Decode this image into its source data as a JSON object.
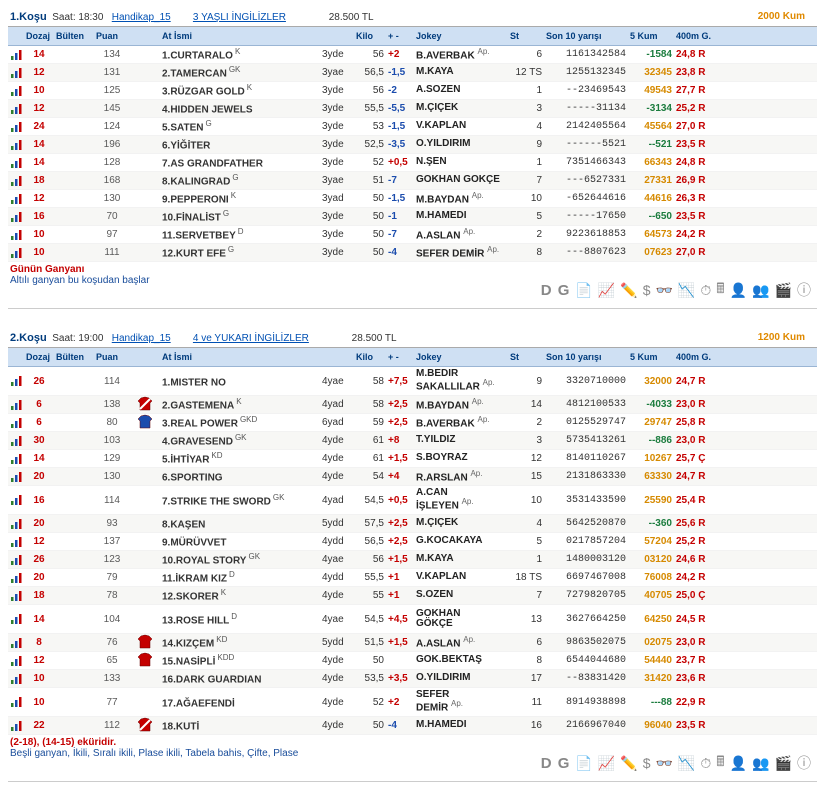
{
  "colors": {
    "dozaj": {
      "14": "#c40000",
      "12": "#c40000",
      "10": "#c40000",
      "24": "#c40000",
      "18": "#c40000",
      "16": "#c40000",
      "26": "#c40000",
      "6": "#c40000",
      "30": "#c40000",
      "20": "#c40000",
      "8": "#c40000"
    },
    "ts": "#888"
  },
  "header_cols": [
    "",
    "Dozaj",
    "Bülten",
    "Puan",
    "",
    "At İsmi",
    "",
    "Kilo",
    "+ -",
    "Jokey",
    "St",
    "Son 10 yarışı",
    "5 Kum",
    "400m G."
  ],
  "race1": {
    "label": "1.Koşu",
    "time": "Saat: 18:30",
    "handicap": "Handikap_15",
    "cat": "3 YAŞLI İNGİLİZLER",
    "prize": "28.500 TL",
    "track": "2000 Kum",
    "note1": "Günün Ganyanı",
    "note2": "Altılı ganyan bu koşudan başlar",
    "rows": [
      {
        "dozaj": "14",
        "dc": "#c40000",
        "bulten": "",
        "puan": "134",
        "silk": "",
        "isim": "1.CURTARALO",
        "ek": "K",
        "age": "3yde",
        "kilo": "56",
        "pm": "+2",
        "pmc": "#c40000",
        "jockey": "B.AVERBAK",
        "jsup": "Ap.",
        "st": "6",
        "son10": "1161342584",
        "kum5": "-1584",
        "kc": "#1b7c3e",
        "g400": "24,8 R",
        "gc": "#c40000"
      },
      {
        "dozaj": "12",
        "dc": "#c40000",
        "bulten": "",
        "puan": "131",
        "silk": "",
        "isim": "2.TAMERCAN",
        "ek": "GK",
        "age": "3yae",
        "kilo": "56,5",
        "pm": "-1,5",
        "pmc": "#1b4cad",
        "jockey": "M.KAYA",
        "jsup": "",
        "st": "12 TS",
        "son10": "1255132345",
        "kum5": "32345",
        "kc": "#d68a00",
        "g400": "23,8 R",
        "gc": "#c40000"
      },
      {
        "dozaj": "10",
        "dc": "#c40000",
        "bulten": "",
        "puan": "125",
        "silk": "",
        "isim": "3.RÜZGAR GOLD",
        "ek": "K",
        "age": "3yde",
        "kilo": "56",
        "pm": "-2",
        "pmc": "#1b4cad",
        "jockey": "A.SÖZEN",
        "jsup": "",
        "st": "1",
        "son10": "--23469543",
        "kum5": "49543",
        "kc": "#d68a00",
        "g400": "27,7 R",
        "gc": "#c40000"
      },
      {
        "dozaj": "12",
        "dc": "#c40000",
        "bulten": "",
        "puan": "145",
        "silk": "",
        "isim": "4.HIDDEN JEWELS",
        "ek": "",
        "age": "3yde",
        "kilo": "55,5",
        "pm": "-5,5",
        "pmc": "#1b4cad",
        "jockey": "M.ÇİÇEK",
        "jsup": "",
        "st": "3",
        "son10": "-----31134",
        "kum5": "-3134",
        "kc": "#1b7c3e",
        "g400": "25,2 R",
        "gc": "#c40000"
      },
      {
        "dozaj": "24",
        "dc": "#c40000",
        "bulten": "",
        "puan": "124",
        "silk": "",
        "isim": "5.SATEN",
        "ek": "G",
        "age": "3yde",
        "kilo": "53",
        "pm": "-1,5",
        "pmc": "#1b4cad",
        "jockey": "V.KAPLAN",
        "jsup": "",
        "st": "4",
        "son10": "2142405564",
        "kum5": "45564",
        "kc": "#d68a00",
        "g400": "27,0 R",
        "gc": "#c40000"
      },
      {
        "dozaj": "14",
        "dc": "#c40000",
        "bulten": "",
        "puan": "196",
        "silk": "",
        "isim": "6.YİĞİTER",
        "ek": "",
        "age": "3yde",
        "kilo": "52,5",
        "pm": "-3,5",
        "pmc": "#1b4cad",
        "jockey": "Ö.YILDIRIM",
        "jsup": "",
        "st": "9",
        "son10": "------5521",
        "kum5": "--521",
        "kc": "#1b7c3e",
        "g400": "23,5 R",
        "gc": "#c40000"
      },
      {
        "dozaj": "14",
        "dc": "#c40000",
        "bulten": "",
        "puan": "128",
        "silk": "",
        "isim": "7.AS GRANDFATHER",
        "ek": "",
        "age": "3yde",
        "kilo": "52",
        "pm": "+0,5",
        "pmc": "#c40000",
        "jockey": "N.ŞEN",
        "jsup": "",
        "st": "1",
        "son10": "7351466343",
        "kum5": "66343",
        "kc": "#d68a00",
        "g400": "24,8 R",
        "gc": "#c40000"
      },
      {
        "dozaj": "18",
        "dc": "#c40000",
        "bulten": "",
        "puan": "168",
        "silk": "",
        "isim": "8.KALINGRAD",
        "ek": "G",
        "age": "3yae",
        "kilo": "51",
        "pm": "-7",
        "pmc": "#1b4cad",
        "jockey": "GÖKHAN GÖKÇE",
        "jsup": "",
        "st": "7",
        "son10": "---6527331",
        "kum5": "27331",
        "kc": "#d68a00",
        "g400": "26,9 R",
        "gc": "#c40000"
      },
      {
        "dozaj": "12",
        "dc": "#c40000",
        "bulten": "",
        "puan": "130",
        "silk": "",
        "isim": "9.PEPPERONI",
        "ek": "K",
        "age": "3yad",
        "kilo": "50",
        "pm": "-1,5",
        "pmc": "#1b4cad",
        "jockey": "M.BAYDAN",
        "jsup": "Ap.",
        "st": "10",
        "son10": "-652644616",
        "kum5": "44616",
        "kc": "#d68a00",
        "g400": "26,3 R",
        "gc": "#c40000"
      },
      {
        "dozaj": "16",
        "dc": "#c40000",
        "bulten": "",
        "puan": "70",
        "silk": "",
        "isim": "10.FİNALİST",
        "ek": "G",
        "age": "3yde",
        "kilo": "50",
        "pm": "-1",
        "pmc": "#1b4cad",
        "jockey": "M.HAMEDI",
        "jsup": "",
        "st": "5",
        "son10": "-----17650",
        "kum5": "--650",
        "kc": "#1b7c3e",
        "g400": "23,5 R",
        "gc": "#c40000"
      },
      {
        "dozaj": "10",
        "dc": "#c40000",
        "bulten": "",
        "puan": "97",
        "silk": "",
        "isim": "11.SERVETBEY",
        "ek": "D",
        "age": "3yde",
        "kilo": "50",
        "pm": "-7",
        "pmc": "#1b4cad",
        "jockey": "A.ASLAN",
        "jsup": "Ap.",
        "st": "2",
        "son10": "9223618853",
        "kum5": "64573",
        "kc": "#d68a00",
        "g400": "24,2 R",
        "gc": "#c40000"
      },
      {
        "dozaj": "10",
        "dc": "#c40000",
        "bulten": "",
        "puan": "111",
        "silk": "",
        "isim": "12.KURT EFE",
        "ek": "G",
        "age": "3yde",
        "kilo": "50",
        "pm": "-4",
        "pmc": "#1b4cad",
        "jockey": "SEFER DEMİR",
        "jsup": "Ap.",
        "st": "8",
        "son10": "---8807623",
        "kum5": "07623",
        "kc": "#d68a00",
        "g400": "27,0 R",
        "gc": "#c40000"
      }
    ]
  },
  "race2": {
    "label": "2.Koşu",
    "time": "Saat: 19:00",
    "handicap": "Handikap_15",
    "cat": "4 ve YUKARI İNGİLİZLER",
    "prize": "28.500 TL",
    "track": "1200 Kum",
    "note1": "(2-18), (14-15) eküridir.",
    "note2": "Beşli ganyan, İkili, Sıralı ikili, Plase ikili, Tabela bahis, Çifte, Plase",
    "rows": [
      {
        "dozaj": "26",
        "dc": "#c40000",
        "puan": "114",
        "isim": "1.MISTER NO",
        "ek": "",
        "age": "4yae",
        "kilo": "58",
        "pm": "+7,5",
        "pmc": "#c40000",
        "jockey": "M.BEDİR SAKALLILAR",
        "jsup": "Ap.",
        "st": "9",
        "son10": "3320710000",
        "kum5": "32000",
        "kc": "#d68a00",
        "g400": "24,7 R",
        "gc": "#c40000",
        "dbl": true
      },
      {
        "dozaj": "6",
        "dc": "#c40000",
        "puan": "138",
        "isim": "2.GASTEMENA",
        "ek": "K",
        "age": "4yad",
        "kilo": "58",
        "pm": "+2,5",
        "pmc": "#c40000",
        "jockey": "M.BAYDAN",
        "jsup": "Ap.",
        "st": "14",
        "son10": "4812100533",
        "kum5": "-4033",
        "kc": "#1b7c3e",
        "g400": "23,0 R",
        "gc": "#c40000",
        "silk": "red-diag"
      },
      {
        "dozaj": "6",
        "dc": "#c40000",
        "puan": "80",
        "isim": "3.REAL POWER",
        "ek": "GKD",
        "age": "6yad",
        "kilo": "59",
        "pm": "+2,5",
        "pmc": "#c40000",
        "jockey": "B.AVERBAK",
        "jsup": "Ap.",
        "st": "2",
        "son10": "0125529747",
        "kum5": "29747",
        "kc": "#d68a00",
        "g400": "25,8 R",
        "gc": "#c40000",
        "silk": "blue"
      },
      {
        "dozaj": "30",
        "dc": "#c40000",
        "puan": "103",
        "isim": "4.GRAVESEND",
        "ek": "GK",
        "age": "4yde",
        "kilo": "61",
        "pm": "+8",
        "pmc": "#c40000",
        "jockey": "T.YILDIZ",
        "jsup": "",
        "st": "3",
        "son10": "5735413261",
        "kum5": "--886",
        "kc": "#1b7c3e",
        "g400": "23,0 R",
        "gc": "#c40000"
      },
      {
        "dozaj": "14",
        "dc": "#c40000",
        "puan": "129",
        "isim": "5.İHTİYAR",
        "ek": "KD",
        "age": "4yde",
        "kilo": "61",
        "pm": "+1,5",
        "pmc": "#c40000",
        "jockey": "S.BOYRAZ",
        "jsup": "",
        "st": "12",
        "son10": "8140110267",
        "kum5": "10267",
        "kc": "#d68a00",
        "g400": "25,7 Ç",
        "gc": "#c40000"
      },
      {
        "dozaj": "20",
        "dc": "#c40000",
        "puan": "130",
        "isim": "6.SPORTING",
        "ek": "",
        "age": "4yde",
        "kilo": "54",
        "pm": "+4",
        "pmc": "#c40000",
        "jockey": "R.ARSLAN",
        "jsup": "Ap.",
        "st": "15",
        "son10": "2131863330",
        "kum5": "63330",
        "kc": "#d68a00",
        "g400": "24,7 R",
        "gc": "#c40000"
      },
      {
        "dozaj": "16",
        "dc": "#c40000",
        "puan": "114",
        "isim": "7.STRIKE THE SWORD",
        "ek": "GK",
        "age": "4yad",
        "kilo": "54,5",
        "pm": "+0,5",
        "pmc": "#c40000",
        "jockey": "A.CAN İŞLEYEN",
        "jsup": "Ap.",
        "st": "10",
        "son10": "3531433590",
        "kum5": "25590",
        "kc": "#d68a00",
        "g400": "25,4 R",
        "gc": "#c40000",
        "dbl": true
      },
      {
        "dozaj": "20",
        "dc": "#c40000",
        "puan": "93",
        "isim": "8.KAŞEN",
        "ek": "",
        "age": "5ydd",
        "kilo": "57,5",
        "pm": "+2,5",
        "pmc": "#c40000",
        "jockey": "M.ÇİÇEK",
        "jsup": "",
        "st": "4",
        "son10": "5642520870",
        "kum5": "--360",
        "kc": "#1b7c3e",
        "g400": "25,6 R",
        "gc": "#c40000"
      },
      {
        "dozaj": "12",
        "dc": "#c40000",
        "puan": "137",
        "isim": "9.MÜRÜVVET",
        "ek": "",
        "age": "4ydd",
        "kilo": "56,5",
        "pm": "+2,5",
        "pmc": "#c40000",
        "jockey": "G.KOCAKAYA",
        "jsup": "",
        "st": "5",
        "son10": "0217857204",
        "kum5": "57204",
        "kc": "#d68a00",
        "g400": "25,2 R",
        "gc": "#c40000"
      },
      {
        "dozaj": "26",
        "dc": "#c40000",
        "puan": "123",
        "isim": "10.ROYAL STORY",
        "ek": "GK",
        "age": "4yae",
        "kilo": "56",
        "pm": "+1,5",
        "pmc": "#c40000",
        "jockey": "M.KAYA",
        "jsup": "",
        "st": "1",
        "son10": "1480003120",
        "kum5": "03120",
        "kc": "#d68a00",
        "g400": "24,6 R",
        "gc": "#c40000"
      },
      {
        "dozaj": "20",
        "dc": "#c40000",
        "puan": "79",
        "isim": "11.İKRAM KIZ",
        "ek": "D",
        "age": "4ydd",
        "kilo": "55,5",
        "pm": "+1",
        "pmc": "#c40000",
        "jockey": "V.KAPLAN",
        "jsup": "",
        "st": "18 TS",
        "son10": "6697467008",
        "kum5": "76008",
        "kc": "#d68a00",
        "g400": "24,2 R",
        "gc": "#c40000"
      },
      {
        "dozaj": "18",
        "dc": "#c40000",
        "puan": "78",
        "isim": "12.SKORER",
        "ek": "K",
        "age": "4yde",
        "kilo": "55",
        "pm": "+1",
        "pmc": "#c40000",
        "jockey": "S.ÖZEN",
        "jsup": "",
        "st": "7",
        "son10": "7279820705",
        "kum5": "40705",
        "kc": "#d68a00",
        "g400": "25,0 Ç",
        "gc": "#c40000"
      },
      {
        "dozaj": "14",
        "dc": "#c40000",
        "puan": "104",
        "isim": "13.ROSE HILL",
        "ek": "D",
        "age": "4yae",
        "kilo": "54,5",
        "pm": "+4,5",
        "pmc": "#c40000",
        "jockey": "GÖKHAN GÖKÇE",
        "jsup": "",
        "st": "13",
        "son10": "3627664250",
        "kum5": "64250",
        "kc": "#d68a00",
        "g400": "24,5 R",
        "gc": "#c40000",
        "dbl": true
      },
      {
        "dozaj": "8",
        "dc": "#c40000",
        "puan": "76",
        "isim": "14.KIZÇEM",
        "ek": "KD",
        "age": "5ydd",
        "kilo": "51,5",
        "pm": "+1,5",
        "pmc": "#c40000",
        "jockey": "A.ASLAN",
        "jsup": "Ap.",
        "st": "6",
        "son10": "9863502075",
        "kum5": "02075",
        "kc": "#d68a00",
        "g400": "23,0 R",
        "gc": "#c40000",
        "silk": "red"
      },
      {
        "dozaj": "12",
        "dc": "#c40000",
        "puan": "65",
        "isim": "15.NASİPLİ",
        "ek": "KDD",
        "age": "4yde",
        "kilo": "50",
        "pm": "",
        "pmc": "#333",
        "jockey": "GÖK.BEKTAŞ",
        "jsup": "",
        "st": "8",
        "son10": "6544044680",
        "kum5": "54440",
        "kc": "#d68a00",
        "g400": "23,7 R",
        "gc": "#c40000",
        "silk": "red"
      },
      {
        "dozaj": "10",
        "dc": "#c40000",
        "puan": "133",
        "isim": "16.DARK GUARDIAN",
        "ek": "",
        "age": "4yde",
        "kilo": "53,5",
        "pm": "+3,5",
        "pmc": "#c40000",
        "jockey": "Ö.YILDIRIM",
        "jsup": "",
        "st": "17",
        "son10": "--83831420",
        "kum5": "31420",
        "kc": "#d68a00",
        "g400": "23,6 R",
        "gc": "#c40000"
      },
      {
        "dozaj": "10",
        "dc": "#c40000",
        "puan": "77",
        "isim": "17.AĞAEFENDİ",
        "ek": "",
        "age": "4yde",
        "kilo": "52",
        "pm": "+2",
        "pmc": "#c40000",
        "jockey": "SEFER DEMİR",
        "jsup": "Ap.",
        "st": "11",
        "son10": "8914938898",
        "kum5": "---88",
        "kc": "#1b7c3e",
        "g400": "22,9 R",
        "gc": "#c40000",
        "dbl": true
      },
      {
        "dozaj": "22",
        "dc": "#c40000",
        "puan": "112",
        "isim": "18.KUTİ",
        "ek": "",
        "age": "4yde",
        "kilo": "50",
        "pm": "-4",
        "pmc": "#1b4cad",
        "jockey": "M.HAMEDI",
        "jsup": "",
        "st": "16",
        "son10": "2166967040",
        "kum5": "96040",
        "kc": "#d68a00",
        "g400": "23,5 R",
        "gc": "#c40000",
        "silk": "red-diag"
      }
    ]
  },
  "footer_glyphs": [
    "📄",
    "📈",
    "✏️",
    "$",
    "👓",
    "📉",
    "⏱",
    "🖩",
    "👤",
    "👥",
    "🎬",
    "ⓘ"
  ]
}
